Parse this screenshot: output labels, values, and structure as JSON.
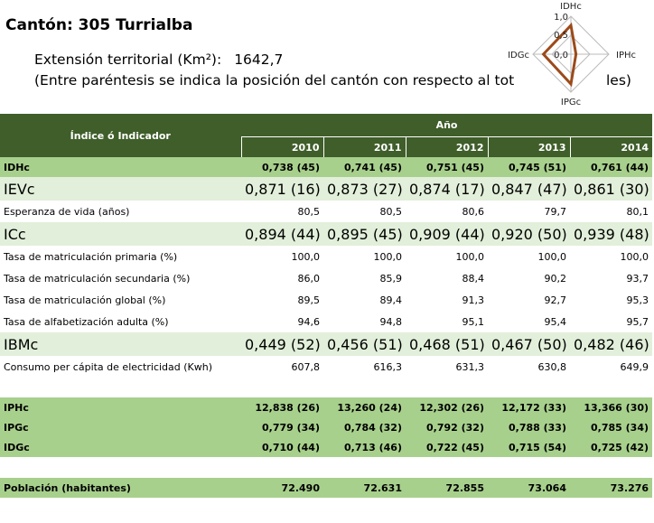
{
  "header": {
    "title": "Cantón: 305 Turrialba",
    "extension_label": "Extensión territorial (Km²):",
    "extension_value": "1642,7",
    "note_start": "(Entre paréntesis se indica la posición del cantón con respecto al tot",
    "note_end": "les)"
  },
  "radar": {
    "axes": [
      "IDHc",
      "IPHc",
      "IPGc",
      "IDGc"
    ],
    "tick_labels": [
      "1,0",
      "0,5",
      "0,0"
    ],
    "series_color": "#9c4a1a",
    "values": [
      0.761,
      0.134,
      0.785,
      0.725
    ]
  },
  "table": {
    "indicator_header": "Índice ó Indicador",
    "year_header": "Año",
    "years": [
      "2010",
      "2011",
      "2012",
      "2013",
      "2014"
    ],
    "rows": [
      {
        "label": "IDHc",
        "style": "green",
        "values": [
          "0,738 (45)",
          "0,741 (45)",
          "0,751 (45)",
          "0,745 (51)",
          "0,761 (44)"
        ]
      },
      {
        "label": "IEVc",
        "style": "big",
        "values": [
          "0,871 (16)",
          "0,873 (27)",
          "0,874 (17)",
          "0,847 (47)",
          "0,861 (30)"
        ]
      },
      {
        "label": "Esperanza de vida (años)",
        "style": "plain",
        "values": [
          "80,5",
          "80,5",
          "80,6",
          "79,7",
          "80,1"
        ]
      },
      {
        "label": "ICc",
        "style": "big",
        "values": [
          "0,894 (44)",
          "0,895 (45)",
          "0,909 (44)",
          "0,920 (50)",
          "0,939 (48)"
        ]
      },
      {
        "label": "Tasa de matriculación primaria (%)",
        "style": "plain",
        "values": [
          "100,0",
          "100,0",
          "100,0",
          "100,0",
          "100,0"
        ]
      },
      {
        "label": "Tasa de matriculación secundaria (%)",
        "style": "plain",
        "values": [
          "86,0",
          "85,9",
          "88,4",
          "90,2",
          "93,7"
        ]
      },
      {
        "label": "Tasa de matriculación global (%)",
        "style": "plain",
        "values": [
          "89,5",
          "89,4",
          "91,3",
          "92,7",
          "95,3"
        ]
      },
      {
        "label": "Tasa de alfabetización adulta (%)",
        "style": "plain",
        "values": [
          "94,6",
          "94,8",
          "95,1",
          "95,4",
          "95,7"
        ]
      },
      {
        "label": "IBMc",
        "style": "big",
        "values": [
          "0,449 (52)",
          "0,456 (51)",
          "0,468 (51)",
          "0,467 (50)",
          "0,482 (46)"
        ]
      },
      {
        "label": "Consumo per cápita de electricidad (Kwh)",
        "style": "plain",
        "values": [
          "607,8",
          "616,3",
          "631,3",
          "630,8",
          "649,9"
        ]
      },
      {
        "label": "",
        "style": "spacer",
        "values": [
          "",
          "",
          "",
          "",
          ""
        ]
      },
      {
        "label": "IPHc",
        "style": "green",
        "values": [
          "12,838 (26)",
          "13,260 (24)",
          "12,302 (26)",
          "12,172 (33)",
          "13,366 (30)"
        ]
      },
      {
        "label": "IPGc",
        "style": "green",
        "values": [
          "0,779 (34)",
          "0,784 (32)",
          "0,792 (32)",
          "0,788 (33)",
          "0,785 (34)"
        ]
      },
      {
        "label": "IDGc",
        "style": "green",
        "values": [
          "0,710 (44)",
          "0,713 (46)",
          "0,722 (45)",
          "0,715 (54)",
          "0,725 (42)"
        ]
      },
      {
        "label": "",
        "style": "spacer2",
        "values": [
          "",
          "",
          "",
          "",
          ""
        ]
      },
      {
        "label": "Población (habitantes)",
        "style": "pob",
        "values": [
          "72.490",
          "72.631",
          "72.855",
          "73.064",
          "73.276"
        ]
      }
    ]
  }
}
